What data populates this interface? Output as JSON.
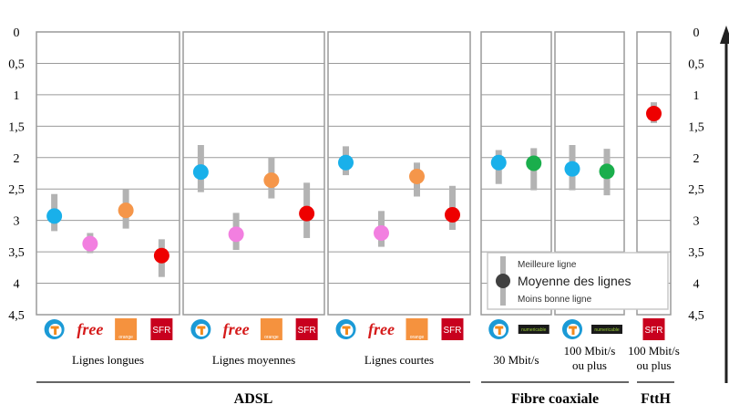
{
  "chart_data": {
    "type": "scatter",
    "title": "",
    "yaxis": {
      "range": [
        0,
        4.5
      ],
      "inverted": true,
      "ticks": [
        "0",
        "0,5",
        "1",
        "1,5",
        "2",
        "2,5",
        "3",
        "3,5",
        "4",
        "4,5"
      ],
      "grid": true
    },
    "colors": {
      "Bouygues": "#19b0ea",
      "Free": "#f27fe0",
      "Orange": "#f5964a",
      "SFR": "#ee0000",
      "Numericable": "#1aae4c",
      "range_bar": "#b3b3b3"
    },
    "panels": [
      {
        "label": "Lignes longues",
        "group": "ADSL",
        "points": [
          {
            "operator": "Bouygues",
            "mean": 2.93,
            "best": 2.58,
            "worst": 3.17
          },
          {
            "operator": "Free",
            "mean": 3.37,
            "best": 3.2,
            "worst": 3.52
          },
          {
            "operator": "Orange",
            "mean": 2.84,
            "best": 2.5,
            "worst": 3.13
          },
          {
            "operator": "SFR",
            "mean": 3.56,
            "best": 3.3,
            "worst": 3.9
          }
        ]
      },
      {
        "label": "Lignes moyennes",
        "group": "ADSL",
        "points": [
          {
            "operator": "Bouygues",
            "mean": 2.23,
            "best": 1.8,
            "worst": 2.55
          },
          {
            "operator": "Free",
            "mean": 3.22,
            "best": 2.88,
            "worst": 3.47
          },
          {
            "operator": "Orange",
            "mean": 2.36,
            "best": 2.0,
            "worst": 2.65
          },
          {
            "operator": "SFR",
            "mean": 2.89,
            "best": 2.4,
            "worst": 3.28
          }
        ]
      },
      {
        "label": "Lignes courtes",
        "group": "ADSL",
        "points": [
          {
            "operator": "Bouygues",
            "mean": 2.08,
            "best": 1.82,
            "worst": 2.28
          },
          {
            "operator": "Free",
            "mean": 3.2,
            "best": 2.85,
            "worst": 3.42
          },
          {
            "operator": "Orange",
            "mean": 2.3,
            "best": 2.08,
            "worst": 2.62
          },
          {
            "operator": "SFR",
            "mean": 2.91,
            "best": 2.45,
            "worst": 3.15
          }
        ]
      },
      {
        "label": "30 Mbit/s",
        "group": "Fibre coaxiale",
        "points": [
          {
            "operator": "Bouygues",
            "mean": 2.08,
            "best": 1.88,
            "worst": 2.42
          },
          {
            "operator": "Numericable",
            "mean": 2.09,
            "best": 1.85,
            "worst": 2.52
          }
        ]
      },
      {
        "label": "100 Mbit/s ou plus",
        "group": "Fibre coaxiale",
        "points": [
          {
            "operator": "Bouygues",
            "mean": 2.18,
            "best": 1.8,
            "worst": 2.52
          },
          {
            "operator": "Numericable",
            "mean": 2.22,
            "best": 1.86,
            "worst": 2.6
          }
        ]
      },
      {
        "label": "100 Mbit/s ou plus",
        "group": "FttH",
        "points": [
          {
            "operator": "SFR",
            "mean": 1.3,
            "best": 1.12,
            "worst": 1.45
          }
        ]
      }
    ],
    "groups": [
      "ADSL",
      "Fibre coaxiale",
      "FttH"
    ],
    "legend": {
      "placement": "bottom-right",
      "best": "Meilleure ligne",
      "mean": "Moyenne des lignes",
      "worst": "Moins bonne ligne"
    },
    "logo_text": {
      "Free": "free",
      "Orange": "orange",
      "SFR": "SFR",
      "Numericable": "numericable"
    }
  }
}
